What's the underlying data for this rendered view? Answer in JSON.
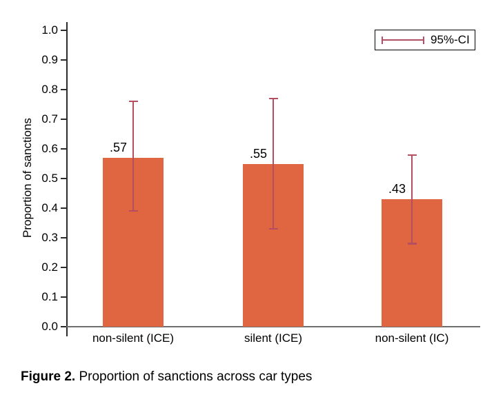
{
  "figure": {
    "y_axis_title": "Proportion of sanctions",
    "y_tick_labels": [
      "0.0",
      "0.1",
      "0.2",
      "0.3",
      "0.4",
      "0.5",
      "0.6",
      "0.7",
      "0.8",
      "0.9",
      "1.0"
    ],
    "legend_label": "95%-CI",
    "caption_bold": "Figure 2.",
    "caption_rest": " Proportion of sanctions across car types"
  },
  "chart_data": {
    "type": "bar",
    "categories": [
      "non-silent (ICE)",
      "silent (ICE)",
      "non-silent (IC)"
    ],
    "values": [
      0.57,
      0.55,
      0.43
    ],
    "value_labels": [
      ".57",
      ".55",
      ".43"
    ],
    "ci_low": [
      0.39,
      0.33,
      0.28
    ],
    "ci_high": [
      0.76,
      0.77,
      0.58
    ],
    "title": "",
    "xlabel": "",
    "ylabel": "Proportion of sanctions",
    "ylim": [
      0.0,
      1.0
    ],
    "ytick_step": 0.1,
    "grid": false,
    "legend": {
      "label": "95%-CI",
      "position": "top-right",
      "border": true
    },
    "colors": {
      "bar_fill": "#e06642",
      "ci_line": "#b54e60",
      "y_axis": "#2b2b2b",
      "x_axis": "#6e6e6e",
      "text": "#000000",
      "background": "#ffffff"
    },
    "caption": "Figure 2. Proportion of sanctions across car types"
  }
}
